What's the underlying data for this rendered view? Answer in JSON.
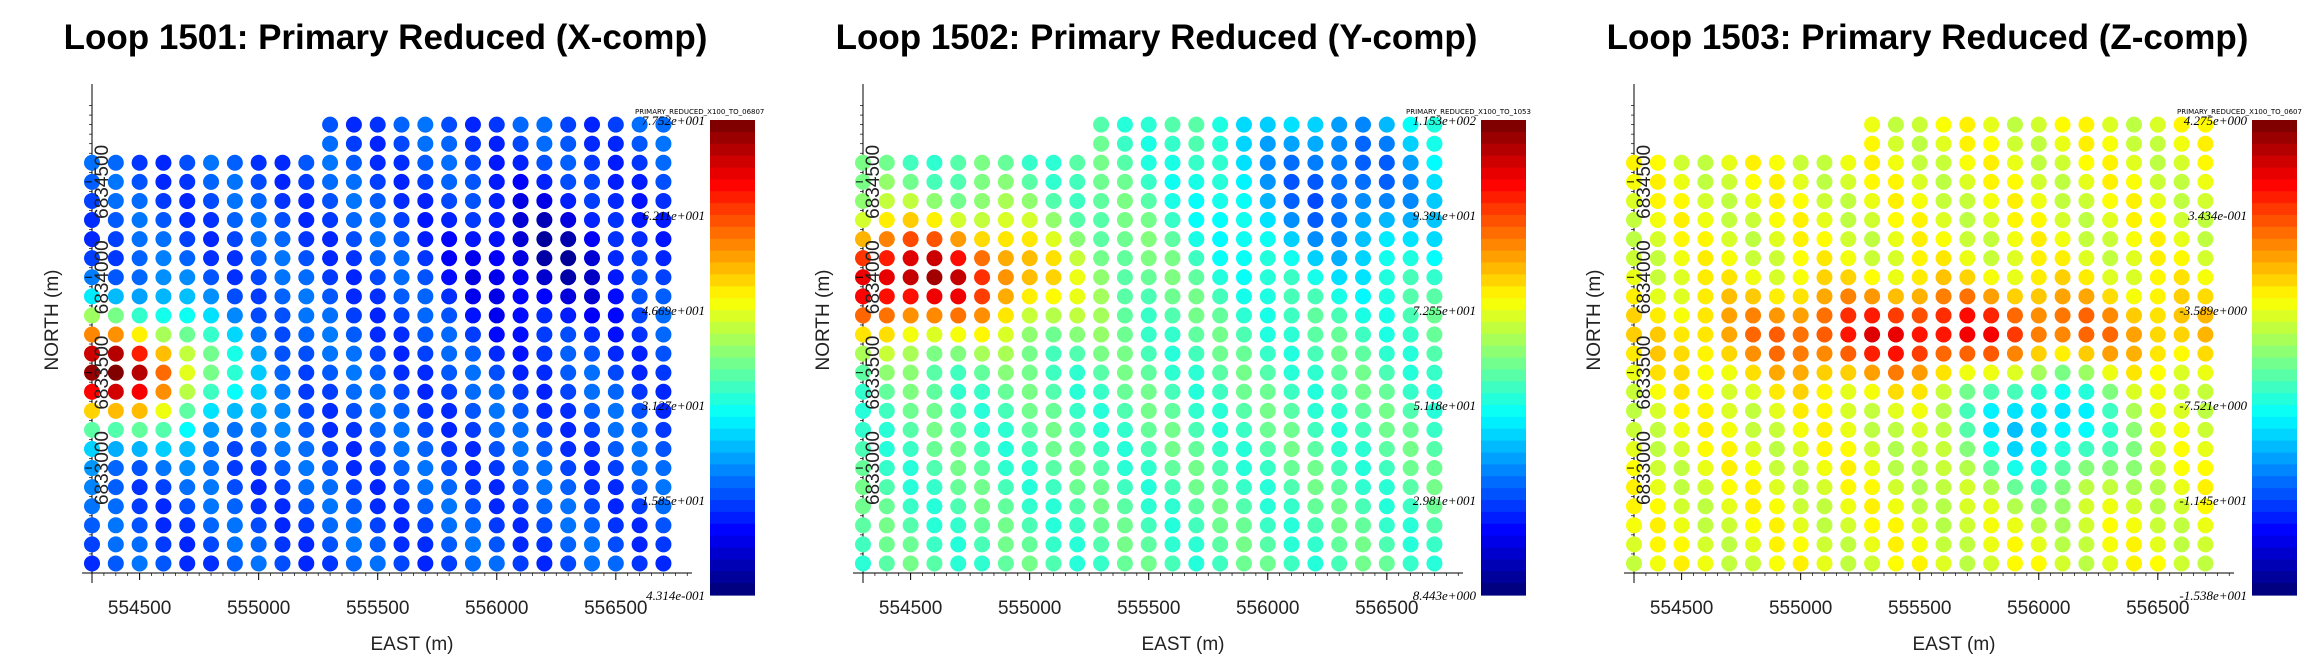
{
  "chart_data": [
    {
      "type": "scatter",
      "subtype": "colored-station-grid",
      "title": "Loop 1501: Primary Reduced (X-comp)",
      "xlabel": "EAST (m)",
      "ylabel": "NORTH (m)",
      "x_ticks": [
        "554500",
        "555000",
        "555500",
        "556000",
        "556500"
      ],
      "y_ticks": [
        "6833000",
        "6833500",
        "6834000",
        "6834500"
      ],
      "colorbar": {
        "caption": "PRIMARY_REDUCED_X100_TO_06807",
        "ticks": [
          "7.752e+001",
          "6.211e+001",
          "4.669e+001",
          "3.127e+001",
          "1.585e+001",
          "4.314e-001"
        ],
        "range": [
          0.4314,
          77.52
        ]
      },
      "xlim": [
        554300,
        556820
      ],
      "ylim": [
        6832450,
        6834950
      ],
      "field": {
        "cx": 554350,
        "cy": 6833500,
        "sx": 450,
        "sy": 300,
        "base": 0.2,
        "amp": 0.8,
        "blob_x": 556200,
        "blob_y": 6834100,
        "blob_r": 350,
        "blob_amp": -0.15
      }
    },
    {
      "type": "scatter",
      "subtype": "colored-station-grid",
      "title": "Loop 1502: Primary Reduced (Y-comp)",
      "xlabel": "EAST (m)",
      "ylabel": "NORTH (m)",
      "x_ticks": [
        "554500",
        "555000",
        "555500",
        "556000",
        "556500"
      ],
      "y_ticks": [
        "6833000",
        "6833500",
        "6834000",
        "6834500"
      ],
      "colorbar": {
        "caption": "PRIMARY_REDUCED_X100_TO_1053",
        "ticks": [
          "1.153e+002",
          "9.391e+001",
          "7.255e+001",
          "5.118e+001",
          "2.981e+001",
          "8.443e+000"
        ],
        "range": [
          8.443,
          115.3
        ]
      },
      "xlim": [
        554300,
        556820
      ],
      "ylim": [
        6832450,
        6834950
      ],
      "field": {
        "cx": 554500,
        "cy": 6834000,
        "sx": 600,
        "sy": 300,
        "base": 0.45,
        "amp": 0.5,
        "blob_x": 556300,
        "blob_y": 6834500,
        "blob_r": 450,
        "blob_amp": -0.25
      }
    },
    {
      "type": "scatter",
      "subtype": "colored-station-grid",
      "title": "Loop 1503: Primary Reduced (Z-comp)",
      "xlabel": "EAST (m)",
      "ylabel": "NORTH (m)",
      "x_ticks": [
        "554500",
        "555000",
        "555500",
        "556000",
        "556500"
      ],
      "y_ticks": [
        "6833000",
        "6833500",
        "6834000",
        "6834500"
      ],
      "colorbar": {
        "caption": "PRIMARY_REDUCED_X100_TO_0607",
        "ticks": [
          "4.275e+000",
          "3.434e-001",
          "-3.589e+000",
          "-7.521e+000",
          "-1.145e+001",
          "-1.538e+001"
        ],
        "range": [
          -15.38,
          4.275
        ]
      },
      "xlim": [
        554300,
        556820
      ],
      "ylim": [
        6832450,
        6834950
      ],
      "field": {
        "cx": 555600,
        "cy": 6833700,
        "sx": 900,
        "sy": 220,
        "base": 0.6,
        "amp": 0.3,
        "blob_x": 556000,
        "blob_y": 6833250,
        "blob_r": 350,
        "blob_amp": -0.3
      }
    }
  ]
}
